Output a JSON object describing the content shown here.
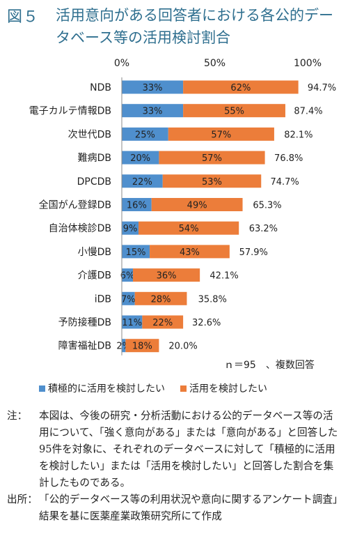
{
  "figure": {
    "number": "図５",
    "title": "活用意向がある回答者における各公的データベース等の活用検討割合"
  },
  "chart_data": {
    "type": "bar",
    "orientation": "horizontal",
    "stacked": true,
    "x_ticks": [
      "0%",
      "50%",
      "100%"
    ],
    "xlim": [
      0,
      100
    ],
    "categories": [
      "NDB",
      "電子カルテ情報DB",
      "次世代DB",
      "難病DB",
      "DPCDB",
      "全国がん登録DB",
      "自治体検診DB",
      "小慢DB",
      "介護DB",
      "iDB",
      "予防接種DB",
      "障害福祉DB"
    ],
    "series": [
      {
        "name": "積極的に活用を検討したい",
        "color": "#4f8fcd",
        "values": [
          33,
          33,
          25,
          20,
          22,
          16,
          9,
          15,
          6,
          7,
          11,
          2
        ],
        "labels": [
          "33%",
          "33%",
          "25%",
          "20%",
          "22%",
          "16%",
          "9%",
          "15%",
          "6%",
          "7%",
          "11%",
          "2%"
        ]
      },
      {
        "name": "活用を検討したい",
        "color": "#ec7d3a",
        "values": [
          62,
          55,
          57,
          57,
          53,
          49,
          54,
          43,
          36,
          28,
          22,
          18
        ],
        "labels": [
          "62%",
          "55%",
          "57%",
          "57%",
          "53%",
          "49%",
          "54%",
          "43%",
          "36%",
          "28%",
          "22%",
          "18%"
        ]
      }
    ],
    "totals": [
      94.7,
      87.4,
      82.1,
      76.8,
      74.7,
      65.3,
      63.2,
      57.9,
      42.1,
      35.8,
      32.6,
      20.0
    ],
    "total_labels": [
      "94.7%",
      "87.4%",
      "82.1%",
      "76.8%",
      "74.7%",
      "65.3%",
      "63.2%",
      "57.9%",
      "42.1%",
      "35.8%",
      "32.6%",
      "20.0%"
    ],
    "legend_position": "bottom",
    "grid": false
  },
  "n_note": "ｎ＝95　、複数回答",
  "notes": {
    "note_label": "注：",
    "note_text": "本図は、今後の研究・分析活動における公的データベース等の活用について、「強く意向がある」または「意向がある」と回答した95件を対象に、それぞれのデータベースに対して「積極的に活用を検討したい」または「活用を検討したい」と回答した割合を集計したものである。",
    "source_label": "出所：",
    "source_text": "「公的データベース等の利用状況や意向に関するアンケート調査」結果を基に医薬産業政策研究所にて作成"
  }
}
